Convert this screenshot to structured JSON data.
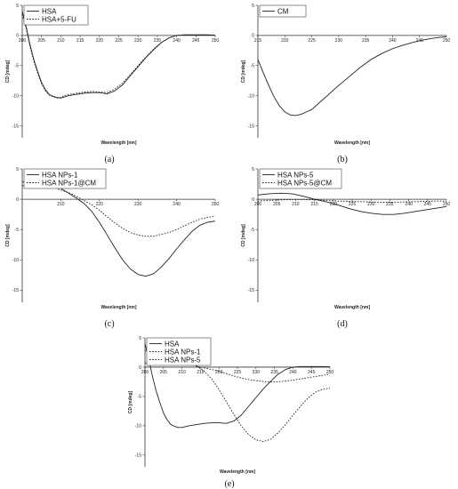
{
  "chart_data": [
    {
      "panel_label": "(a)",
      "type": "line",
      "xlabel": "Wavelength [nm]",
      "ylabel": "CD [mdeg]",
      "xlim": [
        200,
        250
      ],
      "ylim": [
        -17,
        5
      ],
      "xticks": [
        200,
        205,
        210,
        215,
        220,
        225,
        230,
        235,
        240,
        245,
        250
      ],
      "yticks": [
        5,
        0,
        -5,
        -10,
        -15
      ],
      "legend": "top-left",
      "series": [
        {
          "name": "HSA",
          "style": "solid",
          "x": [
            200,
            201,
            202,
            203,
            204,
            205,
            206,
            207,
            208,
            209,
            210,
            211,
            212,
            214,
            216,
            218,
            220,
            222,
            224,
            226,
            228,
            230,
            232,
            234,
            236,
            238,
            240,
            242,
            244,
            246,
            248,
            250
          ],
          "y": [
            4,
            1.5,
            -1.5,
            -4,
            -6,
            -7.8,
            -9,
            -9.8,
            -10.1,
            -10.3,
            -10.4,
            -10.2,
            -10,
            -9.8,
            -9.6,
            -9.5,
            -9.5,
            -9.7,
            -9.2,
            -8.2,
            -6.7,
            -5.2,
            -3.7,
            -2.4,
            -1.2,
            -0.4,
            0,
            0.1,
            0.1,
            0.1,
            0.1,
            0.05
          ]
        },
        {
          "name": "HSA+5-FU",
          "style": "dotted",
          "x": [
            200,
            201,
            202,
            203,
            204,
            205,
            206,
            207,
            208,
            209,
            210,
            211,
            212,
            214,
            216,
            218,
            220,
            222,
            224,
            226,
            228,
            230,
            232,
            234,
            236,
            238,
            240,
            242,
            244,
            246,
            248,
            250
          ],
          "y": [
            3.5,
            1.2,
            -1.8,
            -4.3,
            -6.3,
            -8,
            -9.2,
            -9.9,
            -10.2,
            -10.4,
            -10.3,
            -10,
            -9.8,
            -9.6,
            -9.4,
            -9.3,
            -9.4,
            -9.5,
            -8.9,
            -7.9,
            -6.5,
            -5,
            -3.6,
            -2.3,
            -1.2,
            -0.4,
            0,
            0.1,
            0.1,
            0.1,
            0.1,
            0.05
          ]
        }
      ]
    },
    {
      "panel_label": "(b)",
      "type": "line",
      "xlabel": "Wavelength [nm]",
      "ylabel": "CD [mdeg]",
      "xlim": [
        215,
        250
      ],
      "ylim": [
        -17,
        5
      ],
      "xticks": [
        215,
        220,
        225,
        230,
        235,
        240,
        245,
        250
      ],
      "yticks": [
        5,
        0,
        -5,
        -10,
        -15
      ],
      "legend": "top-left",
      "series": [
        {
          "name": "CM",
          "style": "solid",
          "x": [
            215,
            216,
            217,
            218,
            219,
            220,
            221,
            222,
            223,
            224,
            225,
            226,
            228,
            230,
            232,
            234,
            236,
            238,
            240,
            242,
            244,
            246,
            248,
            250
          ],
          "y": [
            -4,
            -6.2,
            -8.3,
            -10.2,
            -11.7,
            -12.7,
            -13.2,
            -13.3,
            -13.1,
            -12.7,
            -12.3,
            -11.5,
            -9.9,
            -8.3,
            -6.8,
            -5.3,
            -4,
            -3,
            -2.2,
            -1.6,
            -1.1,
            -0.7,
            -0.4,
            -0.2
          ]
        }
      ]
    },
    {
      "panel_label": "(c)",
      "type": "line",
      "xlabel": "Wavelength [nm]",
      "ylabel": "CD [mdeg]",
      "xlim": [
        200,
        250
      ],
      "ylim": [
        -17,
        5
      ],
      "xticks": [
        210,
        220,
        230,
        240,
        250
      ],
      "yticks": [
        5,
        0,
        -5,
        -10,
        -15
      ],
      "legend": "top-left",
      "series": [
        {
          "name": "HSA NPs-1",
          "style": "solid",
          "x": [
            200,
            202,
            204,
            206,
            208,
            210,
            212,
            214,
            216,
            218,
            220,
            222,
            224,
            226,
            228,
            230,
            232,
            234,
            236,
            238,
            240,
            242,
            244,
            246,
            248,
            250
          ],
          "y": [
            2.8,
            3.3,
            3.4,
            3.1,
            2.6,
            1.8,
            1,
            0.2,
            -0.7,
            -2,
            -3.8,
            -5.9,
            -8,
            -10,
            -11.5,
            -12.4,
            -12.7,
            -12.3,
            -11.2,
            -9.8,
            -8.2,
            -6.7,
            -5.3,
            -4.3,
            -3.8,
            -3.6
          ]
        },
        {
          "name": "HSA NPs-1@CM",
          "style": "dotted",
          "x": [
            200,
            202,
            204,
            206,
            208,
            210,
            212,
            214,
            216,
            218,
            220,
            222,
            224,
            226,
            228,
            230,
            232,
            234,
            236,
            238,
            240,
            242,
            244,
            246,
            248,
            250
          ],
          "y": [
            2.2,
            2.6,
            2.5,
            2.3,
            2,
            1.5,
            1.1,
            0.5,
            -0.2,
            -0.9,
            -1.8,
            -2.9,
            -3.9,
            -4.8,
            -5.5,
            -5.9,
            -6.1,
            -6.1,
            -5.8,
            -5.5,
            -5,
            -4.4,
            -3.8,
            -3.3,
            -3,
            -2.8
          ]
        }
      ]
    },
    {
      "panel_label": "(d)",
      "type": "line",
      "xlabel": "Wavelength [nm]",
      "ylabel": "CD [mdeg]",
      "xlim": [
        200,
        250
      ],
      "ylim": [
        -17,
        5
      ],
      "xticks": [
        200,
        205,
        210,
        215,
        220,
        225,
        230,
        235,
        240,
        245,
        250
      ],
      "yticks": [
        5,
        0,
        -5,
        -10,
        -15
      ],
      "legend": "top-left",
      "series": [
        {
          "name": "HSA NPs-5",
          "style": "solid",
          "x": [
            200,
            203,
            206,
            209,
            212,
            215,
            218,
            221,
            224,
            227,
            230,
            233,
            236,
            239,
            242,
            245,
            248,
            250
          ],
          "y": [
            0.7,
            0.9,
            1,
            0.9,
            0.5,
            0,
            -0.4,
            -0.9,
            -1.5,
            -2,
            -2.3,
            -2.5,
            -2.5,
            -2.3,
            -2,
            -1.7,
            -1.4,
            -1.2
          ]
        },
        {
          "name": "HSA NPs-5@CM",
          "style": "dotted",
          "x": [
            200,
            203,
            206,
            209,
            212,
            215,
            218,
            221,
            224,
            227,
            230,
            233,
            236,
            239,
            242,
            245,
            248,
            250
          ],
          "y": [
            -0.3,
            -0.2,
            -0.1,
            -0.05,
            -0.05,
            -0.1,
            -0.2,
            -0.3,
            -0.35,
            -0.4,
            -0.45,
            -0.5,
            -0.5,
            -0.45,
            -0.4,
            -0.35,
            -0.3,
            -0.3
          ]
        }
      ]
    },
    {
      "panel_label": "(e)",
      "type": "line",
      "xlabel": "Wavelength [nm]",
      "ylabel": "CD [mdeg]",
      "xlim": [
        200,
        250
      ],
      "ylim": [
        -17,
        5
      ],
      "xticks": [
        200,
        205,
        210,
        215,
        220,
        225,
        230,
        235,
        240,
        245,
        250
      ],
      "yticks": [
        5,
        0,
        -5,
        -10,
        -15
      ],
      "legend": "top-left",
      "series": [
        {
          "name": "HSA",
          "style": "solid",
          "x": [
            200,
            201,
            202,
            203,
            204,
            205,
            206,
            207,
            208,
            209,
            210,
            212,
            214,
            216,
            218,
            220,
            222,
            224,
            226,
            228,
            230,
            232,
            234,
            236,
            238,
            240,
            242,
            244,
            246,
            248,
            250
          ],
          "y": [
            4,
            1.5,
            -1.5,
            -4,
            -6,
            -7.8,
            -9,
            -9.8,
            -10.1,
            -10.3,
            -10.3,
            -10,
            -9.8,
            -9.6,
            -9.5,
            -9.5,
            -9.6,
            -9.2,
            -8.2,
            -6.7,
            -5.2,
            -3.7,
            -2.4,
            -1.2,
            -0.4,
            0,
            0.1,
            0.1,
            0.1,
            0.1,
            0.05
          ]
        },
        {
          "name": "HSA NPs-1",
          "style": "dotted",
          "x": [
            200,
            202,
            204,
            206,
            208,
            210,
            212,
            214,
            216,
            218,
            220,
            222,
            224,
            226,
            228,
            230,
            232,
            234,
            236,
            238,
            240,
            242,
            244,
            246,
            248,
            250
          ],
          "y": [
            2.8,
            3.3,
            3.4,
            3.1,
            2.6,
            1.8,
            1,
            0.2,
            -0.7,
            -2,
            -3.8,
            -5.9,
            -8,
            -10,
            -11.5,
            -12.4,
            -12.7,
            -12.3,
            -11.2,
            -9.8,
            -8.2,
            -6.7,
            -5.3,
            -4.3,
            -3.8,
            -3.6
          ]
        },
        {
          "name": "HSA NPs-5",
          "style": "dotted",
          "x": [
            200,
            203,
            206,
            209,
            212,
            215,
            218,
            221,
            224,
            227,
            230,
            233,
            236,
            239,
            242,
            245,
            248,
            250
          ],
          "y": [
            0.7,
            0.9,
            1,
            0.9,
            0.5,
            0,
            -0.4,
            -0.9,
            -1.5,
            -2,
            -2.3,
            -2.5,
            -2.5,
            -2.3,
            -2,
            -1.7,
            -1.4,
            -1.2
          ]
        }
      ]
    }
  ]
}
